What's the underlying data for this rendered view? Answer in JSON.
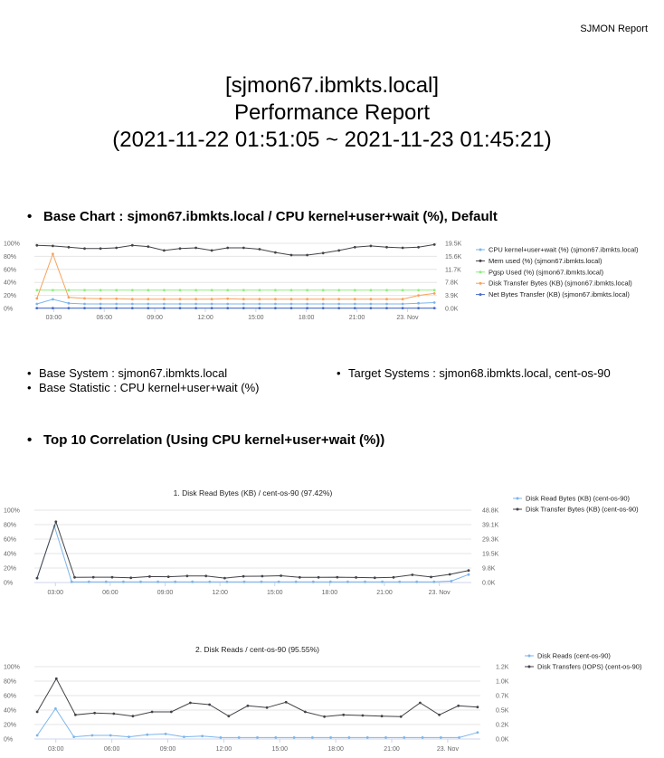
{
  "brand": "SJMON Report",
  "title_lines": [
    "[sjmon67.ibmkts.local]",
    "Performance Report",
    "(2021-11-22 01:51:05 ~ 2021-11-23 01:45:21)"
  ],
  "base_chart_heading": "Base Chart : sjmon67.ibmkts.local / CPU kernel+user+wait (%), Default",
  "info": {
    "base_system": "Base System : sjmon67.ibmkts.local",
    "base_statistic": "Base Statistic : CPU kernel+user+wait (%)",
    "target_systems": "Target Systems : sjmon68.ibmkts.local, cent-os-90"
  },
  "correlation_heading": "Top 10 Correlation (Using CPU kernel+user+wait (%))",
  "chart_data": [
    {
      "type": "line",
      "title": "",
      "x_ticks": [
        "03:00",
        "06:00",
        "09:00",
        "12:00",
        "15:00",
        "18:00",
        "21:00",
        "23. Nov"
      ],
      "y_left_ticks": [
        "100%",
        "80%",
        "60%",
        "40%",
        "20%",
        "0%"
      ],
      "y_right_ticks": [
        "19.5K",
        "15.6K",
        "11.7K",
        "7.8K",
        "3.9K",
        "0.0K"
      ],
      "ylim_left": [
        0,
        100
      ],
      "ylim_right": [
        0,
        19.5
      ],
      "x_range": [
        1.85,
        25.75
      ],
      "series": [
        {
          "name": "CPU kernel+user+wait (%) (sjmon67.ibmkts.local)",
          "color": "#7cb5ec",
          "axis": "left",
          "values": [
            7,
            14,
            8,
            7,
            7,
            7,
            7,
            7,
            7,
            7,
            7,
            7,
            7,
            7,
            7,
            7,
            7,
            7,
            7,
            7,
            7,
            7,
            7,
            7,
            8,
            9
          ]
        },
        {
          "name": "Mem used (%) (sjmon67.ibmkts.local)",
          "color": "#434348",
          "axis": "left",
          "values": [
            97,
            96,
            94,
            92,
            92,
            93,
            97,
            95,
            89,
            92,
            93,
            89,
            93,
            93,
            91,
            86,
            82,
            82,
            85,
            89,
            94,
            96,
            94,
            93,
            94,
            98
          ]
        },
        {
          "name": "Pgsp Used (%) (sjmon67.ibmkts.local)",
          "color": "#90ed7d",
          "axis": "left",
          "values": [
            28,
            28,
            28,
            28,
            28,
            28,
            28,
            28,
            28,
            28,
            28,
            28,
            28,
            28,
            28,
            28,
            28,
            28,
            28,
            28,
            28,
            28,
            28,
            28,
            28,
            28
          ]
        },
        {
          "name": "Disk Transfer Bytes (KB) (sjmon67.ibmkts.local)",
          "color": "#f7a35c",
          "axis": "right",
          "values": [
            3.0,
            16.3,
            3.3,
            3.0,
            2.9,
            2.9,
            2.8,
            2.8,
            2.8,
            2.8,
            2.8,
            2.8,
            2.9,
            2.8,
            2.8,
            2.8,
            2.8,
            2.8,
            2.8,
            2.8,
            2.8,
            2.8,
            2.8,
            2.8,
            3.9,
            4.5
          ]
        },
        {
          "name": "Net Bytes Transfer (KB) (sjmon67.ibmkts.local)",
          "color": "#4a6bc7",
          "axis": "right",
          "values": [
            0.1,
            0.1,
            0.1,
            0.1,
            0.1,
            0.1,
            0.1,
            0.1,
            0.1,
            0.1,
            0.1,
            0.1,
            0.1,
            0.1,
            0.1,
            0.1,
            0.1,
            0.1,
            0.1,
            0.1,
            0.1,
            0.1,
            0.1,
            0.1,
            0.1,
            0.1
          ]
        }
      ]
    },
    {
      "type": "line",
      "title": "1. Disk Read Bytes (KB) / cent-os-90 (97.42%)",
      "x_ticks": [
        "03:00",
        "06:00",
        "09:00",
        "12:00",
        "15:00",
        "18:00",
        "21:00",
        "23. Nov"
      ],
      "y_left_ticks": [
        "100%",
        "80%",
        "60%",
        "40%",
        "20%",
        "0%"
      ],
      "y_right_ticks": [
        "48.8K",
        "39.1K",
        "29.3K",
        "19.5K",
        "9.8K",
        "0.0K"
      ],
      "ylim_left": [
        0,
        100
      ],
      "ylim_right": [
        0,
        48.8
      ],
      "x_range": [
        1.85,
        25.75
      ],
      "series": [
        {
          "name": "Disk Read Bytes (KB) (cent-os-90)",
          "color": "#7cb5ec",
          "axis": "left",
          "values": [
            6,
            78,
            1,
            1,
            1,
            1,
            1,
            1,
            1,
            1,
            1,
            1,
            1,
            1,
            1,
            1,
            1,
            1,
            1,
            1,
            1,
            1,
            1,
            1,
            2,
            11
          ]
        },
        {
          "name": "Disk Transfer Bytes (KB) (cent-os-90)",
          "color": "#434348",
          "axis": "right",
          "values": [
            3.0,
            41.0,
            3.5,
            3.6,
            3.6,
            3.2,
            4.0,
            3.9,
            4.4,
            4.4,
            3.0,
            4.2,
            4.3,
            4.6,
            3.5,
            3.5,
            3.6,
            3.4,
            3.2,
            3.5,
            5.2,
            3.7,
            5.5,
            8.1
          ]
        }
      ]
    },
    {
      "type": "line",
      "title": "2. Disk Reads / cent-os-90 (95.55%)",
      "x_ticks": [
        "03:00",
        "06:00",
        "09:00",
        "12:00",
        "15:00",
        "18:00",
        "21:00",
        "23. Nov"
      ],
      "y_left_ticks": [
        "100%",
        "80%",
        "60%",
        "40%",
        "20%",
        "0%"
      ],
      "y_right_ticks": [
        "1.2K",
        "1.0K",
        "0.7K",
        "0.5K",
        "0.2K",
        "0.0K"
      ],
      "ylim_left": [
        0,
        100
      ],
      "ylim_right": [
        0,
        1.2
      ],
      "x_range": [
        1.85,
        25.75
      ],
      "series": [
        {
          "name": "Disk Reads (cent-os-90)",
          "color": "#7cb5ec",
          "axis": "left",
          "values": [
            5,
            42,
            3,
            5,
            5,
            3,
            6,
            7,
            3,
            4,
            2,
            2,
            2,
            2,
            2,
            2,
            2,
            2,
            2,
            2,
            2,
            2,
            2,
            2,
            9
          ]
        },
        {
          "name": "Disk Transfers (IOPS) (cent-os-90)",
          "color": "#434348",
          "axis": "right",
          "values": [
            0.45,
            1.0,
            0.4,
            0.43,
            0.42,
            0.38,
            0.45,
            0.45,
            0.6,
            0.57,
            0.38,
            0.55,
            0.52,
            0.61,
            0.45,
            0.37,
            0.4,
            0.39,
            0.38,
            0.37,
            0.6,
            0.4,
            0.55,
            0.53
          ]
        }
      ]
    }
  ]
}
